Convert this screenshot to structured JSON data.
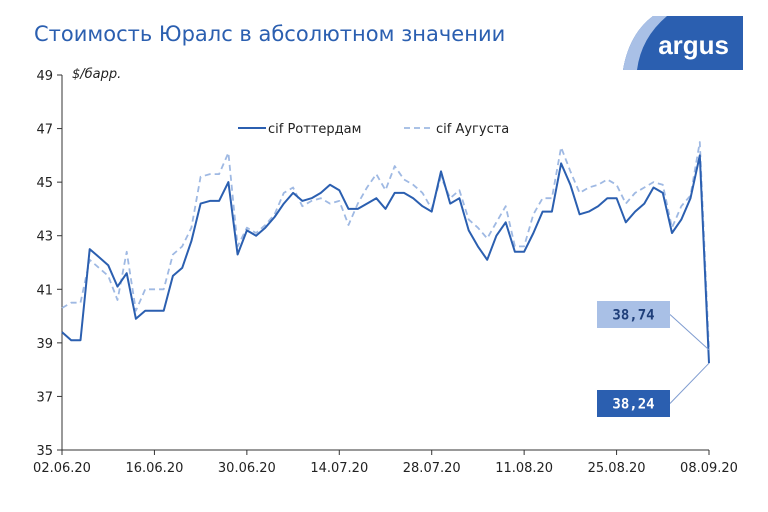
{
  "title": "Стоимость Юралс в абсолютном значении",
  "logo": {
    "text": "argus",
    "color": "#2b5fb0"
  },
  "colors": {
    "series1": "#2b5fb0",
    "series2": "#9fb9e3",
    "callout_light": "#a9c0e6",
    "callout_dark": "#2b5fb0"
  },
  "chart_data": {
    "type": "line",
    "title": "Стоимость Юралс в абсолютном значении",
    "ylabel": "$/барр.",
    "ylim": [
      35,
      49
    ],
    "yticks": [
      "35",
      "37",
      "39",
      "41",
      "43",
      "45",
      "47",
      "49"
    ],
    "xticks": [
      "02.06.20",
      "16.06.20",
      "30.06.20",
      "14.07.20",
      "28.07.20",
      "11.08.20",
      "25.08.20",
      "08.09.20"
    ],
    "x_count": 71,
    "grid": false,
    "legend": "top-center",
    "series": [
      {
        "name": "cif Роттердам",
        "style": "solid",
        "values": [
          39.4,
          39.1,
          39.1,
          42.5,
          42.2,
          41.9,
          41.1,
          41.6,
          39.9,
          40.2,
          40.2,
          40.2,
          41.5,
          41.8,
          42.8,
          44.2,
          44.3,
          44.3,
          45.0,
          42.3,
          43.2,
          43.0,
          43.3,
          43.7,
          44.2,
          44.6,
          44.3,
          44.4,
          44.6,
          44.9,
          44.7,
          44.0,
          44.0,
          44.2,
          44.4,
          44.0,
          44.6,
          44.6,
          44.4,
          44.1,
          43.9,
          45.4,
          44.2,
          44.4,
          43.2,
          42.6,
          42.1,
          43.0,
          43.5,
          42.4,
          42.4,
          43.1,
          43.9,
          43.9,
          45.7,
          44.9,
          43.8,
          43.9,
          44.1,
          44.4,
          44.4,
          43.5,
          43.9,
          44.2,
          44.8,
          44.6,
          43.1,
          43.6,
          44.4,
          46.0,
          38.24
        ],
        "last_label": "38,24"
      },
      {
        "name": "cif Аугуста",
        "style": "dashed",
        "values": [
          40.3,
          40.5,
          40.5,
          42.1,
          41.8,
          41.5,
          40.6,
          42.4,
          40.2,
          41.0,
          41.0,
          41.0,
          42.3,
          42.6,
          43.3,
          45.2,
          45.3,
          45.3,
          46.1,
          42.6,
          43.3,
          43.1,
          43.4,
          43.8,
          44.6,
          44.8,
          44.1,
          44.3,
          44.4,
          44.2,
          44.3,
          43.4,
          44.2,
          44.8,
          45.3,
          44.7,
          45.6,
          45.1,
          44.9,
          44.6,
          44.0,
          45.2,
          44.4,
          44.7,
          43.6,
          43.3,
          42.9,
          43.5,
          44.1,
          42.6,
          42.6,
          43.8,
          44.4,
          44.4,
          46.3,
          45.4,
          44.6,
          44.8,
          44.9,
          45.1,
          44.9,
          44.2,
          44.6,
          44.8,
          45.0,
          44.9,
          43.3,
          44.1,
          44.5,
          46.5,
          38.74
        ],
        "last_label": "38,74"
      }
    ]
  }
}
